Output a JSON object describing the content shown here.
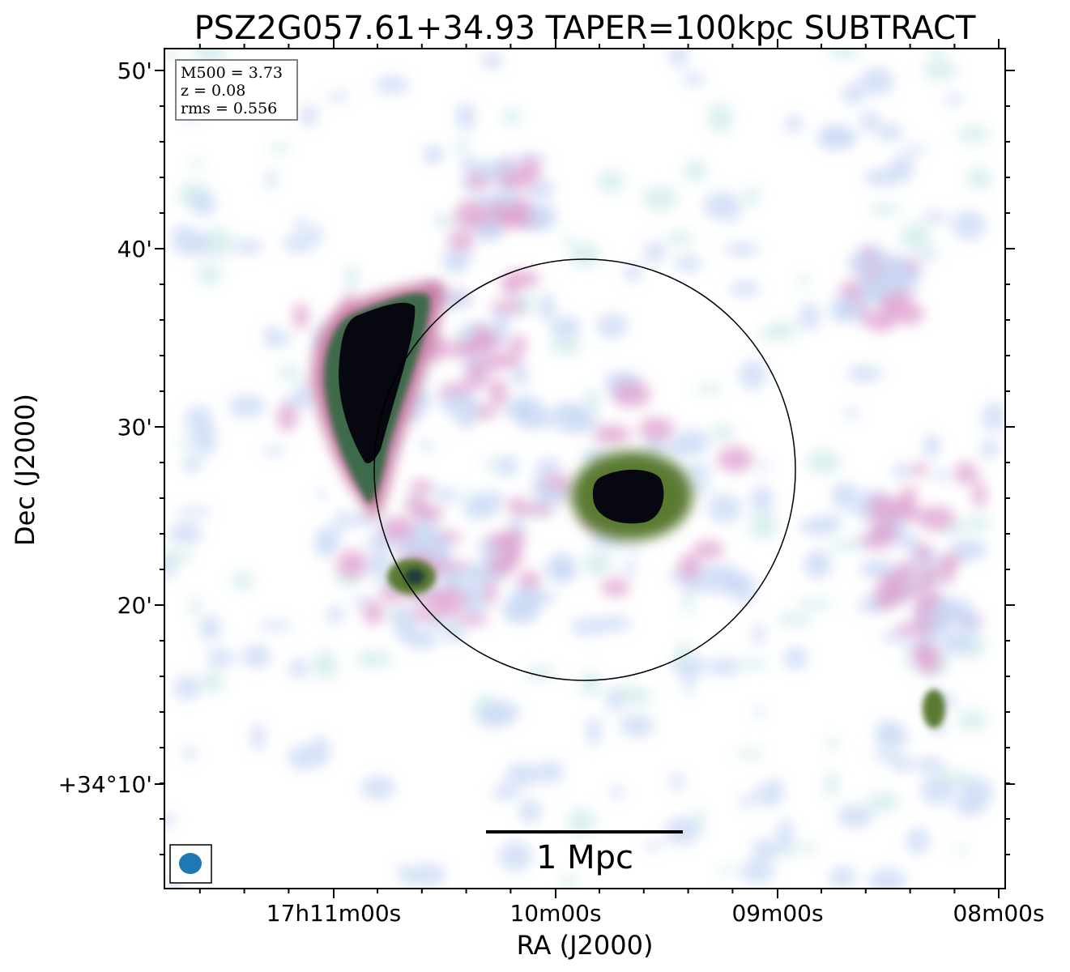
{
  "title": "PSZ2G057.61+34.93 TAPER=100kpc SUBTRACT",
  "xlabel": "RA (J2000)",
  "ylabel": "Dec (J2000)",
  "ra_ticks": [
    "17h11m00s",
    "10m00s",
    "09m00s",
    "08m00s"
  ],
  "dec_ticks": [
    "50'",
    "40'",
    "30'",
    "20'",
    "+34°10'"
  ],
  "info": {
    "m500": "M500 = 3.73",
    "z": "z = 0.08",
    "rms": "rms = 0.556"
  },
  "scale_bar_label": "1 Mpc",
  "colors": {
    "light": "#c8d8f4",
    "pink": "#dea2d0",
    "mid": "#c87fa6",
    "green": "#5a7a30",
    "dark": "#0a0a14",
    "beam": "#1f77b4"
  }
}
